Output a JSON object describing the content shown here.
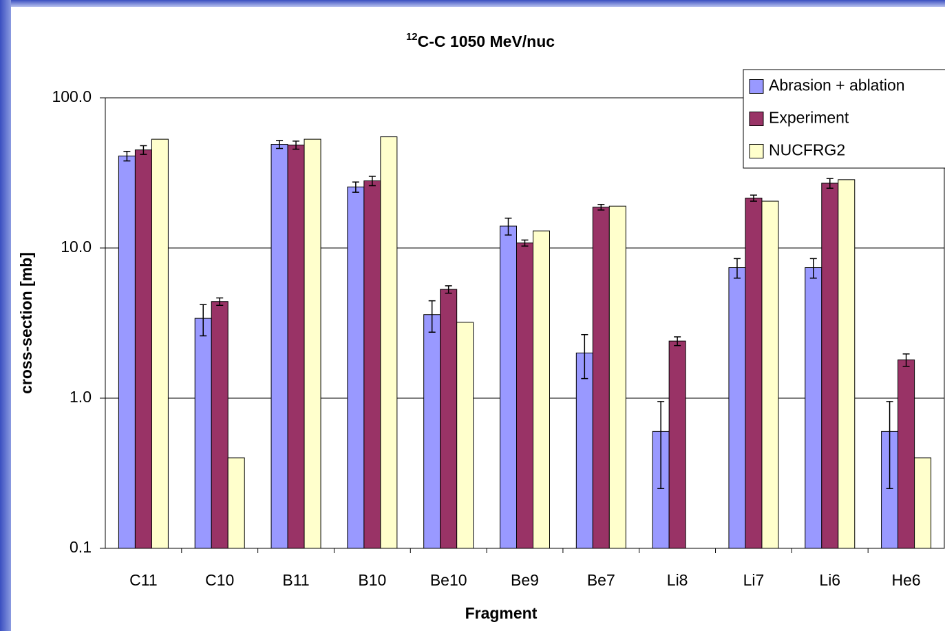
{
  "chart_data": {
    "type": "bar",
    "title_sup": "12",
    "title": "C-C 1050 MeV/nuc",
    "x_label": "Fragment",
    "y_label": "cross-section [mb]",
    "categories": [
      "C11",
      "C10",
      "B11",
      "B10",
      "Be10",
      "Be9",
      "Be7",
      "Li8",
      "Li7",
      "Li6",
      "He6"
    ],
    "series": [
      {
        "name": "Abrasion + ablation",
        "color": "#9999ff",
        "values": [
          41,
          3.4,
          49,
          25.5,
          3.6,
          14,
          2.0,
          0.6,
          7.4,
          7.4,
          0.6
        ],
        "errors": [
          3,
          0.8,
          3,
          2,
          0.85,
          1.8,
          0.65,
          0.35,
          1.1,
          1.1,
          0.35
        ]
      },
      {
        "name": "Experiment",
        "color": "#993366",
        "values": [
          45,
          4.4,
          48.5,
          28,
          5.3,
          10.8,
          18.7,
          2.4,
          21.5,
          27,
          1.8
        ],
        "errors": [
          3,
          0.25,
          3,
          2,
          0.3,
          0.5,
          0.8,
          0.16,
          1,
          2,
          0.17
        ]
      },
      {
        "name": "NUCFRG2",
        "color": "#ffffcc",
        "values": [
          53,
          0.4,
          53,
          55,
          3.2,
          13,
          19,
          null,
          20.5,
          28.5,
          0.4
        ]
      }
    ],
    "log_scale": true,
    "ylim": [
      0.1,
      100
    ],
    "yticks": [
      0.1,
      {
        "value": 1,
        "label": "1.0"
      },
      {
        "value": 10,
        "label": "10.0"
      },
      {
        "value": 100,
        "label": "100.0"
      }
    ],
    "grid": true,
    "legend": "top-right"
  }
}
